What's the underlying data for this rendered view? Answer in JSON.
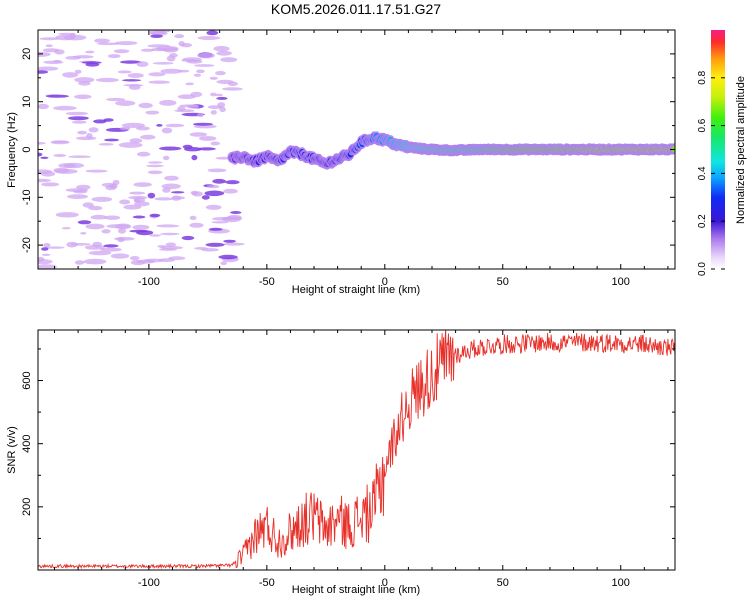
{
  "figure": {
    "title": "KOM5.2026.011.17.51.G27"
  },
  "chart_data": [
    {
      "type": "heatmap",
      "panel": "spectrogram",
      "xlabel": "Height of straight line (km)",
      "ylabel": "Frequency (Hz)",
      "xlim": [
        -147,
        123
      ],
      "ylim": [
        -25,
        25
      ],
      "xticks": [
        -100,
        -50,
        0,
        50,
        100
      ],
      "yticks": [
        -20,
        -10,
        0,
        10,
        20
      ],
      "noise_region_x": [
        -147,
        -63
      ],
      "ridge": {
        "x": [
          -65,
          -60,
          -55,
          -50,
          -45,
          -40,
          -35,
          -30,
          -25,
          -20,
          -15,
          -10,
          -5,
          0,
          5,
          10,
          15,
          20,
          30,
          40,
          50,
          60,
          70,
          80,
          90,
          100,
          110,
          123
        ],
        "y": [
          -2.0,
          -1.5,
          -2.5,
          -1.5,
          -2.5,
          -0.5,
          -1.0,
          -2.0,
          -3.0,
          -2.0,
          -1.0,
          1.5,
          2.5,
          2.0,
          1.0,
          0.5,
          0.2,
          0.0,
          -0.2,
          0.0,
          0.0,
          0.0,
          0.0,
          0.0,
          0.0,
          0.0,
          0.0,
          0.0
        ],
        "amplitude": [
          0.2,
          0.2,
          0.25,
          0.25,
          0.3,
          0.32,
          0.3,
          0.28,
          0.25,
          0.3,
          0.35,
          0.4,
          0.45,
          0.5,
          0.55,
          0.6,
          0.65,
          0.7,
          0.7,
          0.75,
          0.85,
          0.9,
          0.9,
          0.92,
          0.95,
          0.95,
          0.95,
          0.95
        ]
      },
      "colorbar": {
        "label": "Normalized spectral amplitude",
        "range": [
          0.0,
          1.0
        ],
        "ticks": [
          0.0,
          0.2,
          0.4,
          0.6,
          0.8
        ],
        "tick_labels": [
          "0.0",
          "0.2",
          "0.4",
          "0.6",
          "0.8"
        ]
      }
    },
    {
      "type": "line",
      "panel": "snr",
      "xlabel": "Height of straight line (km)",
      "ylabel": "SNR (v/v)",
      "xlim": [
        -147,
        123
      ],
      "ylim": [
        0,
        760
      ],
      "xticks": [
        -100,
        -50,
        0,
        50,
        100
      ],
      "yticks": [
        200,
        400,
        600
      ],
      "series": [
        {
          "name": "SNR",
          "color": "#e8302a",
          "x": [
            -147,
            -120,
            -100,
            -80,
            -65,
            -60,
            -55,
            -50,
            -45,
            -40,
            -35,
            -30,
            -25,
            -20,
            -15,
            -10,
            -5,
            0,
            5,
            10,
            15,
            20,
            25,
            30,
            35,
            40,
            50,
            60,
            70,
            80,
            90,
            100,
            110,
            115,
            123
          ],
          "y": [
            12,
            12,
            12,
            12,
            15,
            45,
            110,
            140,
            90,
            120,
            155,
            170,
            130,
            160,
            140,
            170,
            185,
            320,
            440,
            530,
            580,
            620,
            655,
            680,
            695,
            705,
            715,
            718,
            720,
            722,
            720,
            718,
            715,
            708,
            700
          ]
        }
      ]
    }
  ],
  "colors": {
    "snr_line": "#e8302a",
    "axis": "#000000",
    "noise_blob": "#cfa6f2",
    "noise_core": "#7b3ce0"
  }
}
